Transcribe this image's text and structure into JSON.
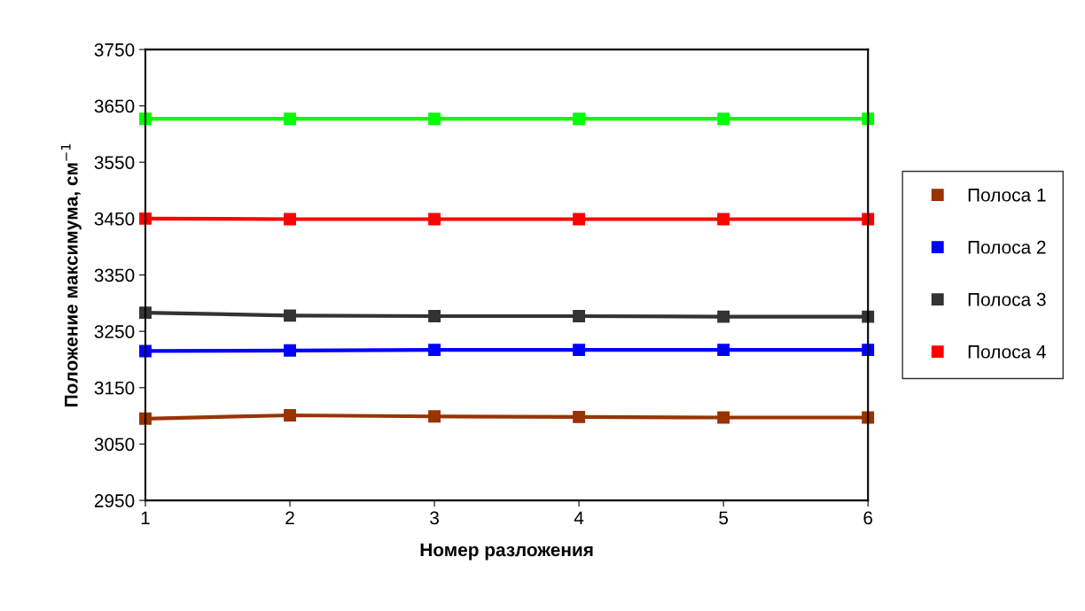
{
  "chart_data": {
    "type": "line",
    "xlabel": "Номер разложения",
    "ylabel": "Положение максимума, см$^{−1}$",
    "x": [
      1,
      2,
      3,
      4,
      5,
      6
    ],
    "xlim": [
      1,
      6
    ],
    "xticks": [
      1,
      2,
      3,
      4,
      5,
      6
    ],
    "ylim": [
      2950,
      3750
    ],
    "yticks": [
      2950,
      3050,
      3150,
      3250,
      3350,
      3450,
      3550,
      3650,
      3750
    ],
    "grid": false,
    "legend": "right",
    "marker": "square",
    "series": [
      {
        "name": "Полоса 1",
        "color": "#993300",
        "values": [
          3095,
          3101,
          3099,
          3098,
          3097,
          3097
        ]
      },
      {
        "name": "Полоса 2",
        "color": "#0000ff",
        "values": [
          3215,
          3216,
          3217,
          3217,
          3217,
          3217
        ]
      },
      {
        "name": "Полоса 3",
        "color": "#333333",
        "values": [
          3283,
          3278,
          3277,
          3277,
          3276,
          3276
        ]
      },
      {
        "name": "Полоса 4",
        "color": "#ff0000",
        "values": [
          3450,
          3449,
          3449,
          3449,
          3449,
          3449
        ]
      },
      {
        "color": "#00ff00",
        "values": [
          3627,
          3627,
          3627,
          3627,
          3627,
          3627
        ]
      }
    ]
  }
}
